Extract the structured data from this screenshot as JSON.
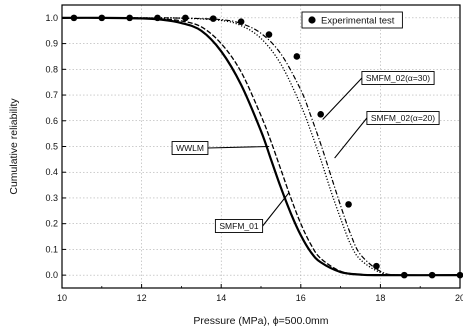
{
  "chart_data": {
    "type": "line",
    "title": "",
    "xlabel": "Pressure (MPa), ϕ=500.0mm",
    "ylabel": "Cumulative reliability",
    "xlim": [
      10,
      20
    ],
    "ylim": [
      -0.05,
      1.05
    ],
    "x_ticks": [
      10,
      12,
      14,
      16,
      18,
      20
    ],
    "y_ticks": [
      0.0,
      0.1,
      0.2,
      0.3,
      0.4,
      0.5,
      0.6,
      0.7,
      0.8,
      0.9,
      1.0
    ],
    "x_tick_labels": [
      "10",
      "12",
      "14",
      "16",
      "18",
      "20"
    ],
    "y_tick_labels": [
      "0.0",
      "0.1",
      "0.2",
      "0.3",
      "0.4",
      "0.5",
      "0.6",
      "0.7",
      "0.8",
      "0.9",
      "1.0"
    ],
    "grid": true,
    "legend": {
      "position": "top-right",
      "entries": [
        "Experimental test"
      ]
    },
    "series": [
      {
        "name": "WWLM",
        "style": "solid",
        "color": "#000000",
        "x": [
          10.0,
          11.0,
          12.0,
          12.5,
          13.0,
          13.5,
          14.0,
          14.5,
          15.0,
          15.25,
          15.5,
          15.75,
          16.0,
          16.25,
          16.5,
          17.0,
          17.5,
          18.0,
          20.0
        ],
        "y": [
          1.0,
          1.0,
          0.998,
          0.993,
          0.98,
          0.95,
          0.87,
          0.74,
          0.56,
          0.45,
          0.34,
          0.24,
          0.155,
          0.09,
          0.05,
          0.012,
          0.002,
          0.0,
          0.0
        ]
      },
      {
        "name": "SMFM_01",
        "style": "dashed",
        "color": "#000000",
        "x": [
          10.0,
          11.0,
          12.0,
          12.5,
          13.0,
          13.5,
          14.0,
          14.5,
          15.0,
          15.25,
          15.5,
          15.75,
          16.0,
          16.25,
          16.5,
          17.0,
          17.5,
          18.0,
          20.0
        ],
        "y": [
          1.0,
          1.0,
          0.999,
          0.996,
          0.988,
          0.965,
          0.9,
          0.79,
          0.62,
          0.52,
          0.41,
          0.3,
          0.2,
          0.12,
          0.065,
          0.015,
          0.003,
          0.0,
          0.0
        ]
      },
      {
        "name": "SMFM_02(α=20)",
        "style": "dotted",
        "color": "#000000",
        "x": [
          10.0,
          12.0,
          13.0,
          14.0,
          14.5,
          15.0,
          15.5,
          16.0,
          16.25,
          16.5,
          16.75,
          17.0,
          17.25,
          17.5,
          18.0,
          18.5,
          20.0
        ],
        "y": [
          1.0,
          1.0,
          0.999,
          0.99,
          0.97,
          0.92,
          0.82,
          0.66,
          0.56,
          0.45,
          0.33,
          0.22,
          0.12,
          0.06,
          0.01,
          0.0,
          0.0
        ]
      },
      {
        "name": "SMFM_02(α=30)",
        "style": "dash-dot",
        "color": "#000000",
        "x": [
          10.0,
          12.0,
          13.0,
          14.0,
          14.5,
          15.0,
          15.5,
          16.0,
          16.25,
          16.5,
          16.75,
          17.0,
          17.25,
          17.5,
          18.0,
          18.5,
          20.0
        ],
        "y": [
          1.0,
          1.0,
          0.999,
          0.993,
          0.978,
          0.94,
          0.86,
          0.72,
          0.62,
          0.51,
          0.39,
          0.27,
          0.16,
          0.08,
          0.015,
          0.0,
          0.0
        ]
      },
      {
        "name": "Experimental test",
        "style": "markers",
        "color": "#000000",
        "x": [
          10.3,
          11.0,
          11.7,
          12.4,
          13.1,
          13.8,
          14.5,
          15.2,
          15.9,
          16.5,
          17.2,
          17.9,
          18.6,
          19.3,
          20.0
        ],
        "y": [
          1.0,
          1.0,
          1.0,
          1.0,
          1.0,
          0.997,
          0.985,
          0.935,
          0.85,
          0.625,
          0.275,
          0.035,
          0.0,
          0.0,
          0.0
        ]
      }
    ],
    "annotations": [
      {
        "text": "WWLM",
        "series": "WWLM",
        "x": 15.2,
        "y": 0.5
      },
      {
        "text": "SMFM_01",
        "series": "SMFM_01",
        "x": 15.7,
        "y": 0.32
      },
      {
        "text": "SMFM_02(α=30)",
        "series": "SMFM_02(α=30)",
        "x": 16.55,
        "y": 0.605
      },
      {
        "text": "SMFM_02(α=20)",
        "series": "SMFM_02(α=20)",
        "x": 16.85,
        "y": 0.455
      }
    ]
  }
}
